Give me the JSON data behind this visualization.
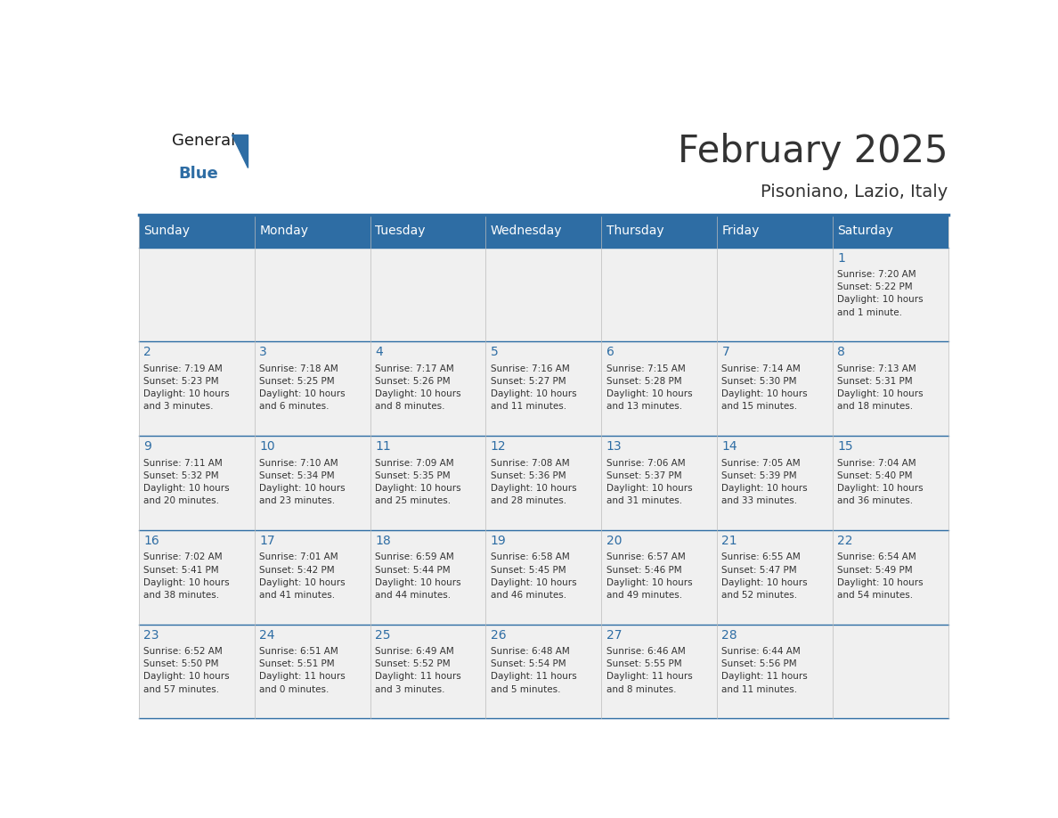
{
  "title": "February 2025",
  "subtitle": "Pisoniano, Lazio, Italy",
  "header_bg": "#2E6DA4",
  "header_text_color": "#FFFFFF",
  "cell_bg_light": "#F0F0F0",
  "day_number_color": "#2E6DA4",
  "text_color": "#333333",
  "days_of_week": [
    "Sunday",
    "Monday",
    "Tuesday",
    "Wednesday",
    "Thursday",
    "Friday",
    "Saturday"
  ],
  "calendar_data": [
    [
      null,
      null,
      null,
      null,
      null,
      null,
      {
        "day": "1",
        "sunrise": "7:20 AM",
        "sunset": "5:22 PM",
        "daylight1": "10 hours",
        "daylight2": "and 1 minute."
      }
    ],
    [
      {
        "day": "2",
        "sunrise": "7:19 AM",
        "sunset": "5:23 PM",
        "daylight1": "10 hours",
        "daylight2": "and 3 minutes."
      },
      {
        "day": "3",
        "sunrise": "7:18 AM",
        "sunset": "5:25 PM",
        "daylight1": "10 hours",
        "daylight2": "and 6 minutes."
      },
      {
        "day": "4",
        "sunrise": "7:17 AM",
        "sunset": "5:26 PM",
        "daylight1": "10 hours",
        "daylight2": "and 8 minutes."
      },
      {
        "day": "5",
        "sunrise": "7:16 AM",
        "sunset": "5:27 PM",
        "daylight1": "10 hours",
        "daylight2": "and 11 minutes."
      },
      {
        "day": "6",
        "sunrise": "7:15 AM",
        "sunset": "5:28 PM",
        "daylight1": "10 hours",
        "daylight2": "and 13 minutes."
      },
      {
        "day": "7",
        "sunrise": "7:14 AM",
        "sunset": "5:30 PM",
        "daylight1": "10 hours",
        "daylight2": "and 15 minutes."
      },
      {
        "day": "8",
        "sunrise": "7:13 AM",
        "sunset": "5:31 PM",
        "daylight1": "10 hours",
        "daylight2": "and 18 minutes."
      }
    ],
    [
      {
        "day": "9",
        "sunrise": "7:11 AM",
        "sunset": "5:32 PM",
        "daylight1": "10 hours",
        "daylight2": "and 20 minutes."
      },
      {
        "day": "10",
        "sunrise": "7:10 AM",
        "sunset": "5:34 PM",
        "daylight1": "10 hours",
        "daylight2": "and 23 minutes."
      },
      {
        "day": "11",
        "sunrise": "7:09 AM",
        "sunset": "5:35 PM",
        "daylight1": "10 hours",
        "daylight2": "and 25 minutes."
      },
      {
        "day": "12",
        "sunrise": "7:08 AM",
        "sunset": "5:36 PM",
        "daylight1": "10 hours",
        "daylight2": "and 28 minutes."
      },
      {
        "day": "13",
        "sunrise": "7:06 AM",
        "sunset": "5:37 PM",
        "daylight1": "10 hours",
        "daylight2": "and 31 minutes."
      },
      {
        "day": "14",
        "sunrise": "7:05 AM",
        "sunset": "5:39 PM",
        "daylight1": "10 hours",
        "daylight2": "and 33 minutes."
      },
      {
        "day": "15",
        "sunrise": "7:04 AM",
        "sunset": "5:40 PM",
        "daylight1": "10 hours",
        "daylight2": "and 36 minutes."
      }
    ],
    [
      {
        "day": "16",
        "sunrise": "7:02 AM",
        "sunset": "5:41 PM",
        "daylight1": "10 hours",
        "daylight2": "and 38 minutes."
      },
      {
        "day": "17",
        "sunrise": "7:01 AM",
        "sunset": "5:42 PM",
        "daylight1": "10 hours",
        "daylight2": "and 41 minutes."
      },
      {
        "day": "18",
        "sunrise": "6:59 AM",
        "sunset": "5:44 PM",
        "daylight1": "10 hours",
        "daylight2": "and 44 minutes."
      },
      {
        "day": "19",
        "sunrise": "6:58 AM",
        "sunset": "5:45 PM",
        "daylight1": "10 hours",
        "daylight2": "and 46 minutes."
      },
      {
        "day": "20",
        "sunrise": "6:57 AM",
        "sunset": "5:46 PM",
        "daylight1": "10 hours",
        "daylight2": "and 49 minutes."
      },
      {
        "day": "21",
        "sunrise": "6:55 AM",
        "sunset": "5:47 PM",
        "daylight1": "10 hours",
        "daylight2": "and 52 minutes."
      },
      {
        "day": "22",
        "sunrise": "6:54 AM",
        "sunset": "5:49 PM",
        "daylight1": "10 hours",
        "daylight2": "and 54 minutes."
      }
    ],
    [
      {
        "day": "23",
        "sunrise": "6:52 AM",
        "sunset": "5:50 PM",
        "daylight1": "10 hours",
        "daylight2": "and 57 minutes."
      },
      {
        "day": "24",
        "sunrise": "6:51 AM",
        "sunset": "5:51 PM",
        "daylight1": "11 hours",
        "daylight2": "and 0 minutes."
      },
      {
        "day": "25",
        "sunrise": "6:49 AM",
        "sunset": "5:52 PM",
        "daylight1": "11 hours",
        "daylight2": "and 3 minutes."
      },
      {
        "day": "26",
        "sunrise": "6:48 AM",
        "sunset": "5:54 PM",
        "daylight1": "11 hours",
        "daylight2": "and 5 minutes."
      },
      {
        "day": "27",
        "sunrise": "6:46 AM",
        "sunset": "5:55 PM",
        "daylight1": "11 hours",
        "daylight2": "and 8 minutes."
      },
      {
        "day": "28",
        "sunrise": "6:44 AM",
        "sunset": "5:56 PM",
        "daylight1": "11 hours",
        "daylight2": "and 11 minutes."
      },
      null
    ]
  ],
  "logo_general_color": "#1a1a1a",
  "logo_blue_color": "#2E6DA4",
  "title_fontsize": 30,
  "subtitle_fontsize": 14,
  "header_fontsize": 10,
  "day_num_fontsize": 10,
  "cell_text_fontsize": 7.5
}
